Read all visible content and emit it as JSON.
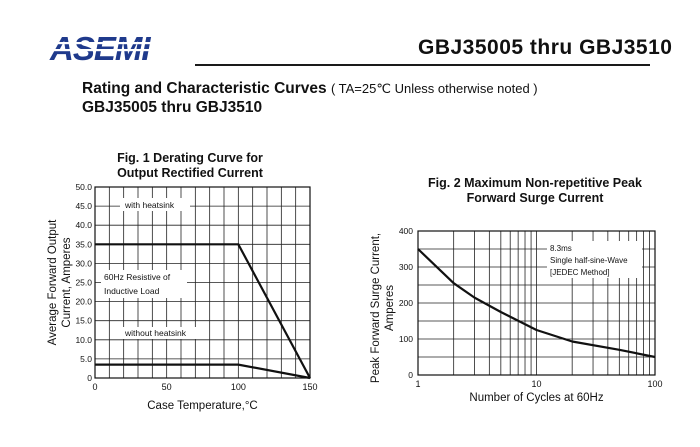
{
  "header": {
    "logo": "ASEMI",
    "part_range": "GBJ35005 thru GBJ3510"
  },
  "page": {
    "title": "Rating and Characteristic Curves",
    "condition": "( TA=25℃ Unless otherwise noted )",
    "subtitle": "GBJ35005 thru GBJ3510"
  },
  "chart_data": [
    {
      "type": "line",
      "title_line1": "Fig. 1 Derating Curve for",
      "title_line2": "Output Rectified Current",
      "xlabel": "Case Temperature,°C",
      "ylabel_line1": "Average Forward Output",
      "ylabel_line2": "Current, Amperes",
      "xlim": [
        0,
        150
      ],
      "ylim": [
        0,
        50
      ],
      "x_ticks": [
        "0",
        "50",
        "100",
        "150"
      ],
      "y_ticks": [
        "0",
        "5.0",
        "10.0",
        "15.0",
        "20.0",
        "25.0",
        "30.0",
        "35.0",
        "40.0",
        "45.0",
        "50.0"
      ],
      "grid": true,
      "series": [
        {
          "name": "with heatsink",
          "x": [
            0,
            100,
            150
          ],
          "y": [
            35,
            35,
            0
          ]
        },
        {
          "name": "without heatsink",
          "x": [
            0,
            100,
            150
          ],
          "y": [
            3.5,
            3.5,
            0
          ]
        }
      ],
      "annotations": [
        "60Hz Resistive of",
        "Inductive Load"
      ]
    },
    {
      "type": "line",
      "title_line1": "Fig. 2 Maximum Non-repetitive Peak",
      "title_line2": "Forward Surge Current",
      "xlabel": "Number of Cycles at 60Hz",
      "ylabel_line1": "Peak Forward Surge Current,",
      "ylabel_line2": "Amperes",
      "xscale": "log",
      "xlim": [
        1,
        100
      ],
      "ylim": [
        0,
        400
      ],
      "x_ticks": [
        "1",
        "10",
        "100"
      ],
      "y_ticks": [
        "0",
        "100",
        "200",
        "300",
        "400"
      ],
      "grid": true,
      "series": [
        {
          "x": [
            1,
            2,
            3,
            5,
            10,
            20,
            50,
            100
          ],
          "y": [
            350,
            255,
            215,
            175,
            125,
            93,
            70,
            50
          ]
        }
      ],
      "annotations": [
        "8.3ms",
        "Single half-sine-Wave",
        "[JEDEC Method]"
      ]
    }
  ]
}
